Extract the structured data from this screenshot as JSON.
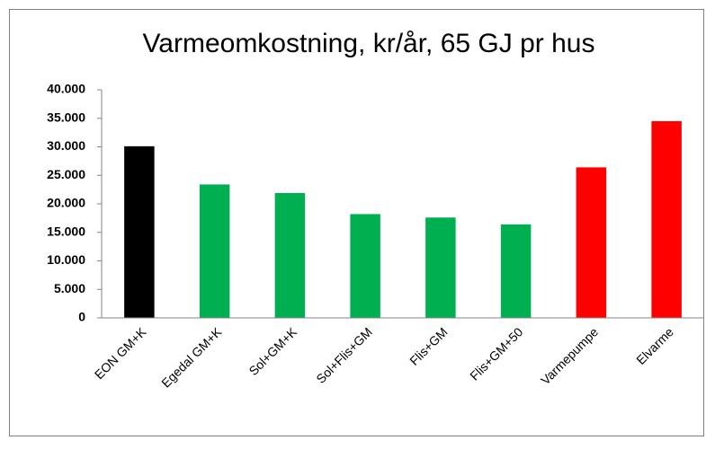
{
  "chart_data": {
    "type": "bar",
    "title": "Varmeomkostning, kr/år, 65 GJ pr hus",
    "categories": [
      "EON GM+K",
      "Egedal GM+K",
      "Sol+GM+K",
      "Sol+Flis+GM",
      "Flis+GM",
      "Flis+GM+50",
      "Varmepumpe",
      "Elvarme"
    ],
    "values": [
      30100,
      23400,
      21900,
      18200,
      17600,
      16400,
      26400,
      34500
    ],
    "colors": [
      "#000000",
      "#00b050",
      "#00b050",
      "#00b050",
      "#00b050",
      "#00b050",
      "#ff0000",
      "#ff0000"
    ],
    "ylim": [
      0,
      40000
    ],
    "yticks": [
      0,
      {
        "value": 5000,
        "label": "5.000"
      },
      {
        "value": 10000,
        "label": "10.000"
      },
      {
        "value": 15000,
        "label": "15.000"
      },
      {
        "value": 20000,
        "label": "20.000"
      },
      {
        "value": 25000,
        "label": "25.000"
      },
      {
        "value": 30000,
        "label": "30.000"
      },
      {
        "value": 35000,
        "label": "35.000"
      },
      {
        "value": 40000,
        "label": "40.000"
      }
    ],
    "grid": false
  }
}
